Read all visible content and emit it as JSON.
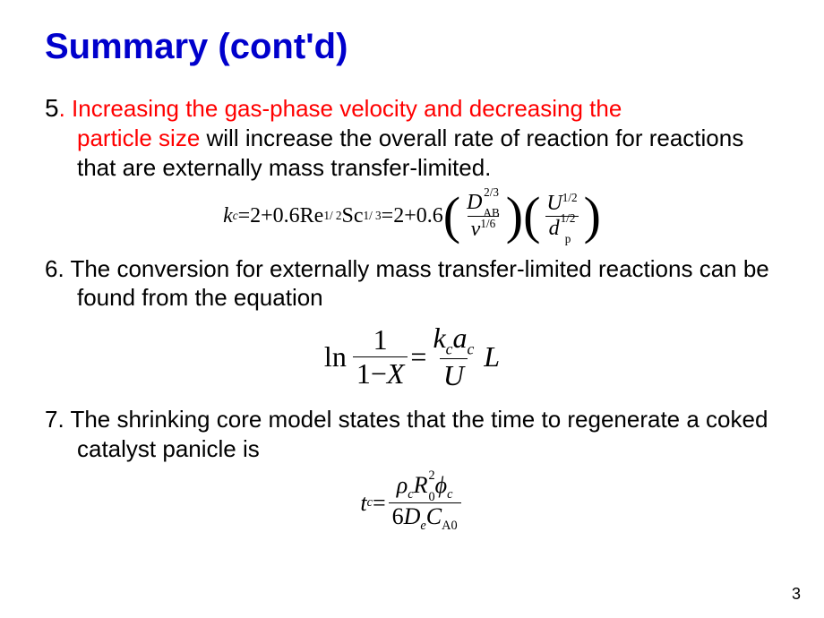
{
  "title": "Summary (cont'd)",
  "item5": {
    "num": "5",
    "red1": ". Increasing the gas-phase velocity and decreasing the",
    "red2": "particle size ",
    "black": "will increase the overall rate of reaction for reactions that are externally mass transfer-limited."
  },
  "eq1": {
    "kc_k": "k",
    "kc_c": "c",
    "eq": " = ",
    "two": "2",
    "plus": " + ",
    "p6": "0.6",
    "Re": "Re",
    "half": "1/ 2",
    "Sc": " Sc",
    "third": "1/ 3",
    "D": "D",
    "AB": "AB",
    "twothird": "2/3",
    "nu": "ν",
    "sixth": "1/6",
    "U": "U",
    "Uhalf": "1/2",
    "d": "d",
    "p": "p",
    "dhalf": "1/2",
    "lpar": "(",
    "rpar": ")"
  },
  "item6": {
    "text": "6. The conversion for externally mass transfer-limited reactions can be found from the equation"
  },
  "eq2": {
    "ln": "ln",
    "one": "1",
    "oneminus": "1",
    "minus": "−",
    "X": "X",
    "eq": " = ",
    "k": "k",
    "c1": "c",
    "a": "a",
    "c2": "c",
    "U": "U",
    "L": "L"
  },
  "item7": {
    "text": "7. The shrinking core model states that the time to regenerate a coked catalyst panicle is"
  },
  "eq3": {
    "t": "t",
    "tc": "c",
    "eq": " = ",
    "rho": "ρ",
    "rhoc": "c",
    "R": "R",
    "R0": "0",
    "R2": "2",
    "phi": "ϕ",
    "phic": "c",
    "six": "6",
    "D": "D",
    "De": "e",
    "C": "C",
    "A0": "A0"
  },
  "pageNum": "3",
  "colors": {
    "title": "#0000cc",
    "red": "#ff0000",
    "text": "#000000",
    "bg": "#ffffff"
  }
}
